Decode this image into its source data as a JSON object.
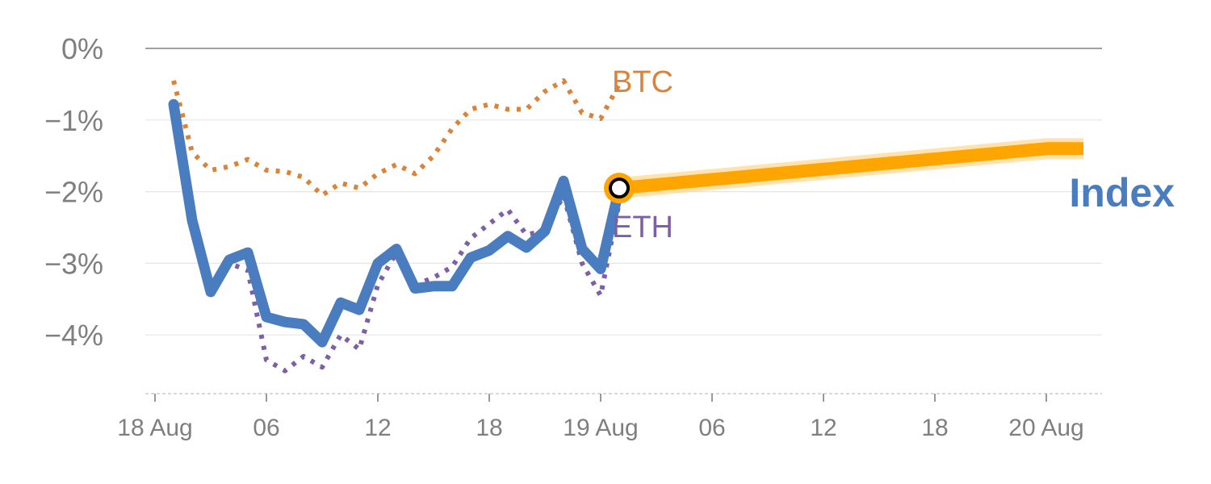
{
  "chart_data": {
    "type": "line",
    "title": "",
    "xlabel": "",
    "ylabel": "",
    "x_range": [
      "18 Aug 00:00",
      "20 Aug 03:00"
    ],
    "x_ticks": [
      {
        "label": "18 Aug",
        "hour": 0
      },
      {
        "label": "06",
        "hour": 6
      },
      {
        "label": "12",
        "hour": 12
      },
      {
        "label": "18",
        "hour": 18
      },
      {
        "label": "19 Aug",
        "hour": 24
      },
      {
        "label": "06",
        "hour": 30
      },
      {
        "label": "12",
        "hour": 36
      },
      {
        "label": "18",
        "hour": 42
      },
      {
        "label": "20 Aug",
        "hour": 48
      }
    ],
    "ylim": [
      -4.8,
      0.2
    ],
    "y_ticks": [
      {
        "label": "0%",
        "value": 0
      },
      {
        "label": "−1%",
        "value": -1
      },
      {
        "label": "−2%",
        "value": -2
      },
      {
        "label": "−3%",
        "value": -3
      },
      {
        "label": "−4%",
        "value": -4
      }
    ],
    "grid": true,
    "colors": {
      "index": "#4a7dbf",
      "btc": "#d9843a",
      "eth": "#7d5fa6",
      "projection": "#ffa500",
      "projection_halo": "#ffd68a",
      "axis_text": "#7f7f7f",
      "grid": "#e6e6e6",
      "zero_line": "#808080"
    },
    "series": [
      {
        "name": "Index",
        "style": "solid",
        "points": [
          [
            1,
            -0.78
          ],
          [
            2,
            -2.4
          ],
          [
            3,
            -3.4
          ],
          [
            4,
            -2.95
          ],
          [
            5,
            -2.85
          ],
          [
            6,
            -3.75
          ],
          [
            7,
            -3.82
          ],
          [
            8,
            -3.85
          ],
          [
            9,
            -4.1
          ],
          [
            10,
            -3.55
          ],
          [
            11,
            -3.65
          ],
          [
            12,
            -3.0
          ],
          [
            13,
            -2.8
          ],
          [
            14,
            -3.35
          ],
          [
            15,
            -3.32
          ],
          [
            16,
            -3.32
          ],
          [
            17,
            -2.92
          ],
          [
            18,
            -2.82
          ],
          [
            19,
            -2.62
          ],
          [
            20,
            -2.78
          ],
          [
            21,
            -2.55
          ],
          [
            22,
            -1.85
          ],
          [
            23,
            -2.8
          ],
          [
            24,
            -3.08
          ],
          [
            25,
            -1.95
          ]
        ]
      },
      {
        "name": "BTC",
        "style": "dotted",
        "points": [
          [
            1,
            -0.45
          ],
          [
            2,
            -1.45
          ],
          [
            3,
            -1.7
          ],
          [
            4,
            -1.65
          ],
          [
            5,
            -1.55
          ],
          [
            6,
            -1.7
          ],
          [
            7,
            -1.72
          ],
          [
            8,
            -1.8
          ],
          [
            9,
            -2.05
          ],
          [
            10,
            -1.88
          ],
          [
            11,
            -1.95
          ],
          [
            12,
            -1.75
          ],
          [
            13,
            -1.62
          ],
          [
            14,
            -1.75
          ],
          [
            15,
            -1.5
          ],
          [
            16,
            -1.12
          ],
          [
            17,
            -0.85
          ],
          [
            18,
            -0.78
          ],
          [
            19,
            -0.85
          ],
          [
            20,
            -0.85
          ],
          [
            21,
            -0.6
          ],
          [
            22,
            -0.45
          ],
          [
            23,
            -0.9
          ],
          [
            24,
            -0.98
          ],
          [
            25,
            -0.5
          ]
        ]
      },
      {
        "name": "ETH",
        "style": "dotted",
        "points": [
          [
            1,
            -0.85
          ],
          [
            2,
            -2.45
          ],
          [
            3,
            -3.3
          ],
          [
            4,
            -3.0
          ],
          [
            5,
            -3.1
          ],
          [
            6,
            -4.35
          ],
          [
            7,
            -4.5
          ],
          [
            8,
            -4.3
          ],
          [
            9,
            -4.45
          ],
          [
            10,
            -4.0
          ],
          [
            11,
            -4.2
          ],
          [
            12,
            -3.3
          ],
          [
            13,
            -2.85
          ],
          [
            14,
            -3.3
          ],
          [
            15,
            -3.2
          ],
          [
            16,
            -3.05
          ],
          [
            17,
            -2.65
          ],
          [
            18,
            -2.45
          ],
          [
            19,
            -2.25
          ],
          [
            20,
            -2.6
          ],
          [
            21,
            -2.55
          ],
          [
            22,
            -2.05
          ],
          [
            23,
            -3.0
          ],
          [
            24,
            -3.45
          ],
          [
            25,
            -2.15
          ]
        ]
      }
    ],
    "projection": {
      "points": [
        [
          25,
          -1.95
        ],
        [
          48,
          -1.4
        ],
        [
          50,
          -1.4
        ]
      ],
      "marker_at": [
        25,
        -1.95
      ]
    },
    "labels": {
      "btc": "BTC",
      "eth": "ETH",
      "index": "Index"
    }
  }
}
